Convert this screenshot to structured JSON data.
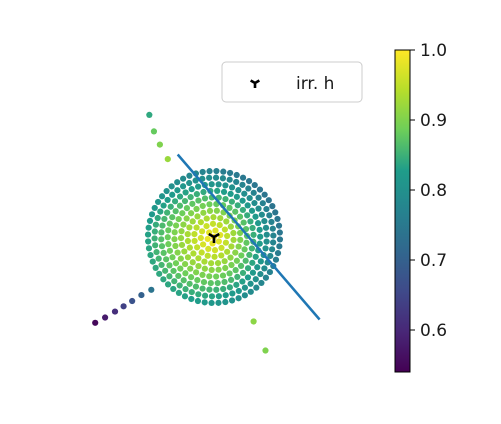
{
  "chart_data": {
    "type": "scatter",
    "legend": {
      "placement": "top-right",
      "entries": [
        {
          "label": "irr. h",
          "marker": "tri_down",
          "color": "#000000"
        }
      ]
    },
    "colorbar": {
      "colormap": "viridis",
      "range": [
        0.54,
        1.0
      ],
      "ticks": [
        0.6,
        0.7,
        0.8,
        0.9,
        1.0
      ],
      "tick_labels": [
        "0.6",
        "0.7",
        "0.8",
        "0.9",
        "1.0"
      ]
    },
    "line": {
      "color": "#1f77b4",
      "points": [
        [
          -0.55,
          1.25
        ],
        [
          1.6,
          -1.25
        ]
      ]
    },
    "center_marker": {
      "x": 0,
      "y": 0,
      "label": "irr. h"
    },
    "disk": {
      "radius": 1.0,
      "value_center": 1.0,
      "value_edge": 0.79
    },
    "rays": [
      {
        "points": [
          [
            -0.98,
            1.85
          ],
          [
            -0.91,
            1.6
          ],
          [
            -0.82,
            1.4
          ],
          [
            -0.7,
            1.18
          ]
        ],
        "values": [
          0.84,
          0.88,
          0.9,
          0.92
        ]
      },
      {
        "points": [
          [
            -1.8,
            -1.3
          ],
          [
            -1.65,
            -1.22
          ],
          [
            -1.5,
            -1.13
          ],
          [
            -1.37,
            -1.05
          ],
          [
            -1.24,
            -0.97
          ],
          [
            -1.1,
            -0.88
          ],
          [
            -0.95,
            -0.8
          ]
        ],
        "values": [
          0.55,
          0.58,
          0.61,
          0.64,
          0.67,
          0.7,
          0.74
        ]
      },
      {
        "points": [
          [
            0.6,
            -1.28
          ],
          [
            0.78,
            -1.72
          ]
        ],
        "values": [
          0.91,
          0.9
        ]
      }
    ],
    "axes_visible": false,
    "grid": false
  }
}
